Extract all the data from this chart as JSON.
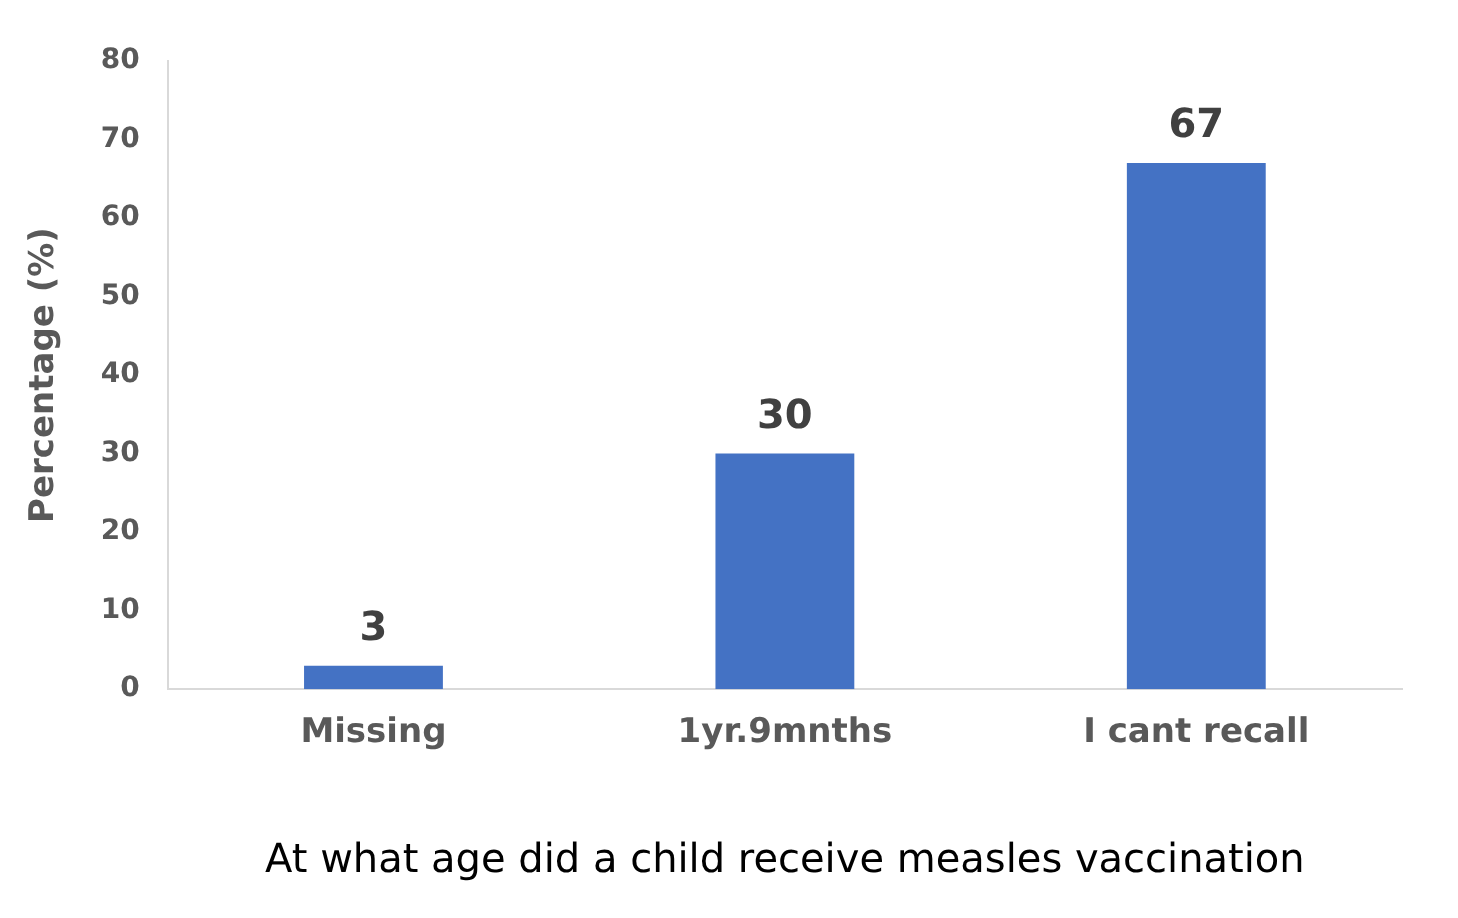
{
  "chart_data": {
    "type": "bar",
    "xlabel": "At what age did a child receive measles vaccination",
    "ylabel": "Percentage (%)",
    "categories": [
      "Missing",
      "1yr.9mnths",
      "I cant recall"
    ],
    "values": [
      3,
      30,
      67
    ],
    "color": "#4472c4",
    "ylim": [
      0,
      80
    ],
    "yticks": [
      0,
      10,
      20,
      30,
      40,
      50,
      60,
      70,
      80
    ],
    "grid": false,
    "legend": false,
    "data_labels": true
  }
}
